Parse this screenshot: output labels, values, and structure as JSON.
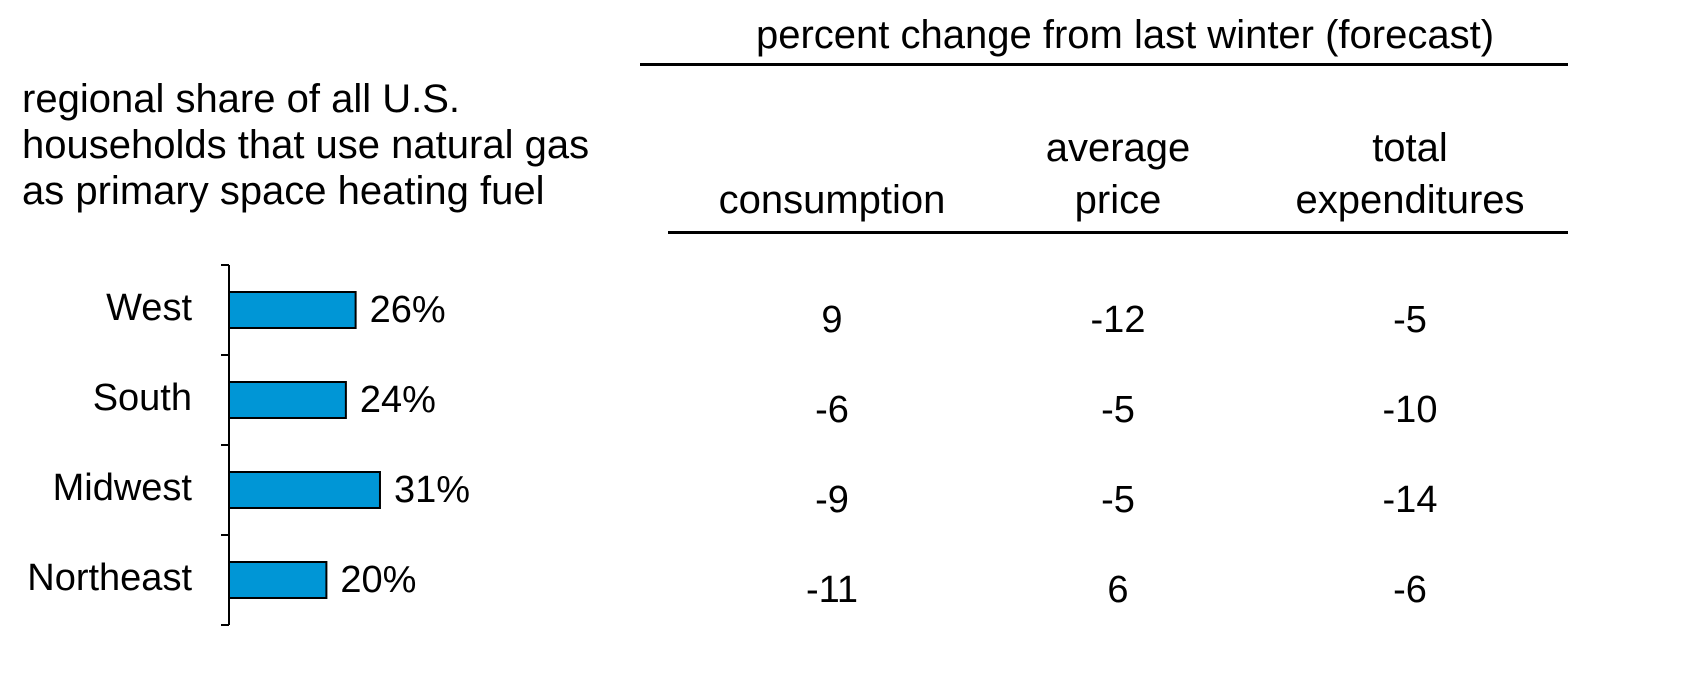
{
  "chart_data": {
    "type": "bar",
    "orientation": "horizontal",
    "title": "regional share of all U.S. households that use natural gas as primary space heating fuel",
    "categories": [
      "West",
      "South",
      "Midwest",
      "Northeast"
    ],
    "values": [
      26,
      24,
      31,
      20
    ],
    "value_labels": [
      "26%",
      "24%",
      "31%",
      "20%"
    ],
    "color": "#0096d6"
  },
  "table": {
    "title": "percent change from last winter (forecast)",
    "columns": [
      "consumption",
      "average price",
      "total expenditures"
    ],
    "rows": [
      [
        9,
        -12,
        -5
      ],
      [
        -6,
        -5,
        -10
      ],
      [
        -9,
        -5,
        -14
      ],
      [
        -11,
        6,
        -6
      ]
    ]
  }
}
